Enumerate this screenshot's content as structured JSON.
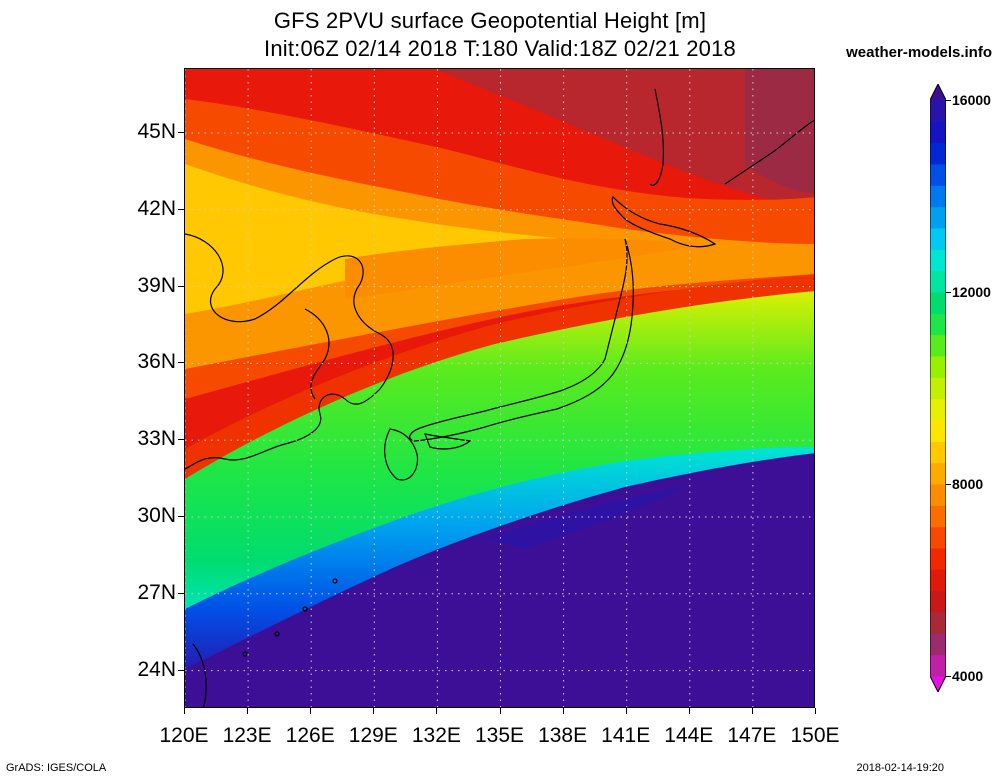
{
  "title": {
    "line1": "GFS 2PVU surface Geopotential Height [m]",
    "line2": "Init:06Z 02/14 2018 T:180 Valid:18Z 02/21 2018"
  },
  "brand": "weather-models.info",
  "footer": {
    "left": "GrADS: IGES/COLA",
    "right": "2018-02-14-19:20"
  },
  "axes": {
    "lat_labels": [
      "45N",
      "42N",
      "39N",
      "36N",
      "33N",
      "30N",
      "27N",
      "24N"
    ],
    "lat_values": [
      45,
      42,
      39,
      36,
      33,
      30,
      27,
      24
    ],
    "lon_labels": [
      "120E",
      "123E",
      "126E",
      "129E",
      "132E",
      "135E",
      "138E",
      "141E",
      "144E",
      "147E",
      "150E"
    ],
    "lon_values": [
      120,
      123,
      126,
      129,
      132,
      135,
      138,
      141,
      144,
      147,
      150
    ],
    "lat_range": [
      22.5,
      47.5
    ],
    "lon_range": [
      120,
      150
    ],
    "grid": true
  },
  "colorbar": {
    "labels": [
      "16000",
      "12000",
      "8000",
      "4000"
    ],
    "label_values": [
      16000,
      12000,
      8000,
      4000
    ],
    "range": [
      4000,
      16000
    ],
    "colors": [
      "#e60fe6",
      "#c01fa8",
      "#9c2a6e",
      "#a82a37",
      "#c8181a",
      "#e01a0a",
      "#f22800",
      "#f54a00",
      "#fa6e00",
      "#fc8c00",
      "#feaa00",
      "#ffc800",
      "#ffe600",
      "#e6f000",
      "#c3f000",
      "#96f000",
      "#5aeb1e",
      "#1ee646",
      "#00dc6e",
      "#00e6a0",
      "#00e6d2",
      "#00c8f0",
      "#00a0f0",
      "#0078f0",
      "#0050e6",
      "#0028d7",
      "#1414c3",
      "#2814aa",
      "#3c0f96"
    ]
  },
  "map_colors": {
    "ocean_deep": "#3c0f96",
    "land_line": "#000000",
    "grid_line": "#bfbfbf"
  }
}
